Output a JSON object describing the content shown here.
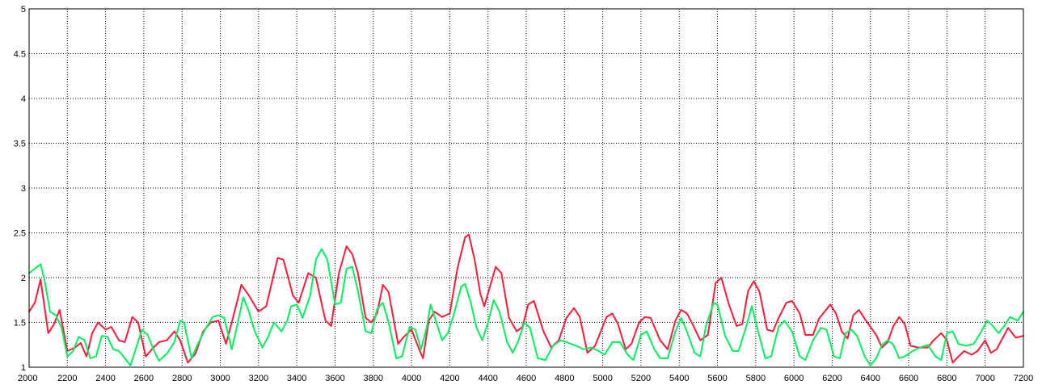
{
  "chart_data": {
    "type": "line",
    "xlim": [
      2000,
      7200
    ],
    "ylim": [
      1,
      5
    ],
    "x_ticks": [
      2000,
      2200,
      2400,
      2600,
      2800,
      3000,
      3200,
      3400,
      3600,
      3800,
      4000,
      4200,
      4400,
      4600,
      4800,
      5000,
      5200,
      5400,
      5600,
      5800,
      6000,
      6200,
      6400,
      6600,
      6800,
      7000,
      7200
    ],
    "y_ticks": [
      1,
      1.5,
      2,
      2.5,
      3,
      3.5,
      4,
      4.5,
      5
    ],
    "y_tick_labels": [
      "1",
      "1.5",
      "2",
      "2.5",
      "3",
      "3.5",
      "4",
      "4.5",
      "5"
    ],
    "x_tick_labels": [
      "2000",
      "2200",
      "2400",
      "2600",
      "2800",
      "3000",
      "3200",
      "3400",
      "3600",
      "3800",
      "4000",
      "4200",
      "4400",
      "4600",
      "4800",
      "5000",
      "5200",
      "5400",
      "5600",
      "5800",
      "6000",
      "6200",
      "6400",
      "6600",
      "6800",
      "7000",
      "7200"
    ],
    "grid": true,
    "legend": "none",
    "series": [
      {
        "color": "#ff1a3c",
        "points": [
          [
            2000,
            1.62
          ],
          [
            2030,
            1.72
          ],
          [
            2060,
            1.98
          ],
          [
            2100,
            1.38
          ],
          [
            2130,
            1.48
          ],
          [
            2160,
            1.64
          ],
          [
            2200,
            1.18
          ],
          [
            2240,
            1.22
          ],
          [
            2270,
            1.27
          ],
          [
            2300,
            1.12
          ],
          [
            2330,
            1.38
          ],
          [
            2360,
            1.5
          ],
          [
            2400,
            1.42
          ],
          [
            2430,
            1.45
          ],
          [
            2470,
            1.3
          ],
          [
            2500,
            1.28
          ],
          [
            2540,
            1.56
          ],
          [
            2570,
            1.5
          ],
          [
            2610,
            1.12
          ],
          [
            2650,
            1.22
          ],
          [
            2680,
            1.28
          ],
          [
            2720,
            1.3
          ],
          [
            2760,
            1.4
          ],
          [
            2790,
            1.3
          ],
          [
            2830,
            1.05
          ],
          [
            2870,
            1.15
          ],
          [
            2910,
            1.4
          ],
          [
            2950,
            1.5
          ],
          [
            2990,
            1.52
          ],
          [
            3030,
            1.26
          ],
          [
            3060,
            1.5
          ],
          [
            3110,
            1.92
          ],
          [
            3150,
            1.8
          ],
          [
            3200,
            1.62
          ],
          [
            3240,
            1.68
          ],
          [
            3300,
            2.22
          ],
          [
            3330,
            2.2
          ],
          [
            3380,
            1.8
          ],
          [
            3410,
            1.72
          ],
          [
            3460,
            2.05
          ],
          [
            3500,
            2.0
          ],
          [
            3550,
            1.52
          ],
          [
            3580,
            1.46
          ],
          [
            3620,
            2.05
          ],
          [
            3660,
            2.35
          ],
          [
            3690,
            2.26
          ],
          [
            3720,
            2.05
          ],
          [
            3760,
            1.55
          ],
          [
            3790,
            1.5
          ],
          [
            3820,
            1.6
          ],
          [
            3850,
            1.92
          ],
          [
            3880,
            1.84
          ],
          [
            3930,
            1.26
          ],
          [
            3960,
            1.34
          ],
          [
            4000,
            1.42
          ],
          [
            4040,
            1.2
          ],
          [
            4060,
            1.1
          ],
          [
            4090,
            1.52
          ],
          [
            4120,
            1.62
          ],
          [
            4160,
            1.56
          ],
          [
            4200,
            1.6
          ],
          [
            4240,
            2.1
          ],
          [
            4280,
            2.45
          ],
          [
            4300,
            2.48
          ],
          [
            4330,
            2.2
          ],
          [
            4360,
            1.82
          ],
          [
            4380,
            1.68
          ],
          [
            4410,
            1.9
          ],
          [
            4440,
            2.12
          ],
          [
            4470,
            2.05
          ],
          [
            4510,
            1.55
          ],
          [
            4550,
            1.4
          ],
          [
            4580,
            1.45
          ],
          [
            4610,
            1.7
          ],
          [
            4640,
            1.74
          ],
          [
            4690,
            1.4
          ],
          [
            4730,
            1.22
          ],
          [
            4770,
            1.3
          ],
          [
            4810,
            1.55
          ],
          [
            4850,
            1.66
          ],
          [
            4880,
            1.56
          ],
          [
            4920,
            1.16
          ],
          [
            4960,
            1.24
          ],
          [
            5020,
            1.56
          ],
          [
            5050,
            1.6
          ],
          [
            5080,
            1.48
          ],
          [
            5120,
            1.2
          ],
          [
            5150,
            1.26
          ],
          [
            5190,
            1.5
          ],
          [
            5220,
            1.56
          ],
          [
            5250,
            1.55
          ],
          [
            5300,
            1.3
          ],
          [
            5340,
            1.2
          ],
          [
            5380,
            1.52
          ],
          [
            5410,
            1.64
          ],
          [
            5440,
            1.6
          ],
          [
            5470,
            1.48
          ],
          [
            5510,
            1.3
          ],
          [
            5550,
            1.36
          ],
          [
            5590,
            1.94
          ],
          [
            5620,
            2.0
          ],
          [
            5660,
            1.7
          ],
          [
            5700,
            1.46
          ],
          [
            5730,
            1.48
          ],
          [
            5760,
            1.85
          ],
          [
            5790,
            1.96
          ],
          [
            5820,
            1.84
          ],
          [
            5860,
            1.42
          ],
          [
            5890,
            1.4
          ],
          [
            5920,
            1.55
          ],
          [
            5960,
            1.72
          ],
          [
            5990,
            1.74
          ],
          [
            6030,
            1.6
          ],
          [
            6060,
            1.36
          ],
          [
            6100,
            1.36
          ],
          [
            6130,
            1.54
          ],
          [
            6160,
            1.62
          ],
          [
            6190,
            1.7
          ],
          [
            6220,
            1.6
          ],
          [
            6250,
            1.4
          ],
          [
            6280,
            1.32
          ],
          [
            6310,
            1.58
          ],
          [
            6340,
            1.64
          ],
          [
            6370,
            1.54
          ],
          [
            6400,
            1.45
          ],
          [
            6430,
            1.36
          ],
          [
            6460,
            1.22
          ],
          [
            6490,
            1.28
          ],
          [
            6520,
            1.46
          ],
          [
            6550,
            1.56
          ],
          [
            6580,
            1.48
          ],
          [
            6610,
            1.24
          ],
          [
            6650,
            1.22
          ],
          [
            6700,
            1.22
          ],
          [
            6730,
            1.3
          ],
          [
            6770,
            1.38
          ],
          [
            6800,
            1.3
          ],
          [
            6830,
            1.05
          ],
          [
            6860,
            1.12
          ],
          [
            6890,
            1.18
          ],
          [
            6930,
            1.14
          ],
          [
            6960,
            1.18
          ],
          [
            7000,
            1.3
          ],
          [
            7030,
            1.16
          ],
          [
            7060,
            1.2
          ],
          [
            7090,
            1.32
          ],
          [
            7120,
            1.44
          ],
          [
            7160,
            1.33
          ],
          [
            7200,
            1.35
          ]
        ]
      },
      {
        "color": "#00f060",
        "points": [
          [
            2000,
            2.05
          ],
          [
            2030,
            2.1
          ],
          [
            2060,
            2.15
          ],
          [
            2080,
            1.98
          ],
          [
            2110,
            1.62
          ],
          [
            2140,
            1.58
          ],
          [
            2170,
            1.44
          ],
          [
            2200,
            1.12
          ],
          [
            2230,
            1.18
          ],
          [
            2260,
            1.34
          ],
          [
            2290,
            1.3
          ],
          [
            2320,
            1.1
          ],
          [
            2350,
            1.12
          ],
          [
            2380,
            1.35
          ],
          [
            2410,
            1.34
          ],
          [
            2440,
            1.2
          ],
          [
            2470,
            1.18
          ],
          [
            2500,
            1.1
          ],
          [
            2530,
            1.02
          ],
          [
            2560,
            1.22
          ],
          [
            2590,
            1.42
          ],
          [
            2620,
            1.36
          ],
          [
            2650,
            1.2
          ],
          [
            2680,
            1.07
          ],
          [
            2720,
            1.15
          ],
          [
            2760,
            1.28
          ],
          [
            2790,
            1.52
          ],
          [
            2810,
            1.5
          ],
          [
            2850,
            1.1
          ],
          [
            2880,
            1.25
          ],
          [
            2920,
            1.42
          ],
          [
            2960,
            1.56
          ],
          [
            2990,
            1.58
          ],
          [
            3020,
            1.55
          ],
          [
            3060,
            1.2
          ],
          [
            3090,
            1.48
          ],
          [
            3120,
            1.78
          ],
          [
            3150,
            1.62
          ],
          [
            3180,
            1.4
          ],
          [
            3220,
            1.22
          ],
          [
            3250,
            1.34
          ],
          [
            3280,
            1.5
          ],
          [
            3320,
            1.4
          ],
          [
            3350,
            1.52
          ],
          [
            3370,
            1.68
          ],
          [
            3400,
            1.7
          ],
          [
            3430,
            1.55
          ],
          [
            3470,
            1.8
          ],
          [
            3500,
            2.2
          ],
          [
            3530,
            2.32
          ],
          [
            3560,
            2.2
          ],
          [
            3600,
            1.7
          ],
          [
            3630,
            1.72
          ],
          [
            3660,
            2.1
          ],
          [
            3690,
            2.12
          ],
          [
            3720,
            1.85
          ],
          [
            3760,
            1.4
          ],
          [
            3790,
            1.38
          ],
          [
            3820,
            1.65
          ],
          [
            3850,
            1.72
          ],
          [
            3880,
            1.5
          ],
          [
            3920,
            1.1
          ],
          [
            3950,
            1.12
          ],
          [
            3990,
            1.45
          ],
          [
            4020,
            1.42
          ],
          [
            4050,
            1.2
          ],
          [
            4080,
            1.45
          ],
          [
            4100,
            1.7
          ],
          [
            4130,
            1.5
          ],
          [
            4160,
            1.3
          ],
          [
            4190,
            1.38
          ],
          [
            4220,
            1.58
          ],
          [
            4260,
            1.9
          ],
          [
            4280,
            1.93
          ],
          [
            4310,
            1.72
          ],
          [
            4340,
            1.44
          ],
          [
            4370,
            1.3
          ],
          [
            4400,
            1.5
          ],
          [
            4430,
            1.75
          ],
          [
            4460,
            1.62
          ],
          [
            4500,
            1.28
          ],
          [
            4530,
            1.16
          ],
          [
            4560,
            1.3
          ],
          [
            4590,
            1.5
          ],
          [
            4620,
            1.44
          ],
          [
            4660,
            1.1
          ],
          [
            4700,
            1.08
          ],
          [
            4740,
            1.24
          ],
          [
            4780,
            1.3
          ],
          [
            4810,
            1.28
          ],
          [
            4860,
            1.24
          ],
          [
            4900,
            1.2
          ],
          [
            4940,
            1.22
          ],
          [
            4980,
            1.18
          ],
          [
            5010,
            1.14
          ],
          [
            5050,
            1.28
          ],
          [
            5090,
            1.28
          ],
          [
            5130,
            1.14
          ],
          [
            5160,
            1.08
          ],
          [
            5200,
            1.36
          ],
          [
            5230,
            1.4
          ],
          [
            5270,
            1.2
          ],
          [
            5300,
            1.1
          ],
          [
            5340,
            1.1
          ],
          [
            5380,
            1.4
          ],
          [
            5410,
            1.55
          ],
          [
            5440,
            1.4
          ],
          [
            5480,
            1.16
          ],
          [
            5510,
            1.12
          ],
          [
            5540,
            1.46
          ],
          [
            5580,
            1.72
          ],
          [
            5600,
            1.7
          ],
          [
            5640,
            1.35
          ],
          [
            5680,
            1.18
          ],
          [
            5710,
            1.18
          ],
          [
            5750,
            1.45
          ],
          [
            5780,
            1.68
          ],
          [
            5810,
            1.42
          ],
          [
            5850,
            1.1
          ],
          [
            5880,
            1.12
          ],
          [
            5920,
            1.45
          ],
          [
            5950,
            1.52
          ],
          [
            5990,
            1.4
          ],
          [
            6030,
            1.12
          ],
          [
            6060,
            1.08
          ],
          [
            6100,
            1.3
          ],
          [
            6140,
            1.44
          ],
          [
            6170,
            1.42
          ],
          [
            6210,
            1.12
          ],
          [
            6240,
            1.1
          ],
          [
            6270,
            1.38
          ],
          [
            6300,
            1.42
          ],
          [
            6330,
            1.35
          ],
          [
            6370,
            1.12
          ],
          [
            6400,
            1.02
          ],
          [
            6430,
            1.1
          ],
          [
            6460,
            1.25
          ],
          [
            6490,
            1.3
          ],
          [
            6520,
            1.25
          ],
          [
            6550,
            1.1
          ],
          [
            6580,
            1.12
          ],
          [
            6620,
            1.18
          ],
          [
            6660,
            1.22
          ],
          [
            6700,
            1.25
          ],
          [
            6740,
            1.12
          ],
          [
            6770,
            1.08
          ],
          [
            6800,
            1.38
          ],
          [
            6830,
            1.4
          ],
          [
            6860,
            1.26
          ],
          [
            6900,
            1.24
          ],
          [
            6940,
            1.26
          ],
          [
            6980,
            1.4
          ],
          [
            7010,
            1.52
          ],
          [
            7040,
            1.46
          ],
          [
            7070,
            1.38
          ],
          [
            7100,
            1.46
          ],
          [
            7130,
            1.56
          ],
          [
            7170,
            1.52
          ],
          [
            7200,
            1.62
          ]
        ]
      }
    ]
  }
}
